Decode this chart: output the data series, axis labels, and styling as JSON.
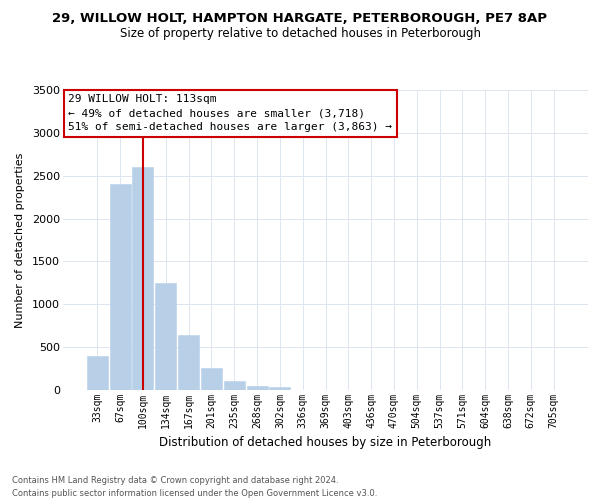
{
  "title_line1": "29, WILLOW HOLT, HAMPTON HARGATE, PETERBOROUGH, PE7 8AP",
  "title_line2": "Size of property relative to detached houses in Peterborough",
  "xlabel": "Distribution of detached houses by size in Peterborough",
  "ylabel": "Number of detached properties",
  "bar_values": [
    400,
    2400,
    2600,
    1250,
    640,
    260,
    100,
    50,
    30,
    0,
    0,
    0,
    0,
    0,
    0,
    0,
    0,
    0,
    0,
    0,
    0
  ],
  "categories": [
    "33sqm",
    "67sqm",
    "100sqm",
    "134sqm",
    "167sqm",
    "201sqm",
    "235sqm",
    "268sqm",
    "302sqm",
    "336sqm",
    "369sqm",
    "403sqm",
    "436sqm",
    "470sqm",
    "504sqm",
    "537sqm",
    "571sqm",
    "604sqm",
    "638sqm",
    "672sqm",
    "705sqm"
  ],
  "bar_color": "#b8cfe8",
  "bar_edge_color": "#b8cfe8",
  "vline_x": 2,
  "vline_color": "#cc0000",
  "ylim": [
    0,
    3500
  ],
  "yticks": [
    0,
    500,
    1000,
    1500,
    2000,
    2500,
    3000,
    3500
  ],
  "annotation_title": "29 WILLOW HOLT: 113sqm",
  "annotation_line1": "← 49% of detached houses are smaller (3,718)",
  "annotation_line2": "51% of semi-detached houses are larger (3,863) →",
  "annotation_box_color": "#ffffff",
  "annotation_box_edge": "#cc0000",
  "footnote_line1": "Contains HM Land Registry data © Crown copyright and database right 2024.",
  "footnote_line2": "Contains public sector information licensed under the Open Government Licence v3.0.",
  "background_color": "#ffffff",
  "grid_color": "#dce6f0"
}
